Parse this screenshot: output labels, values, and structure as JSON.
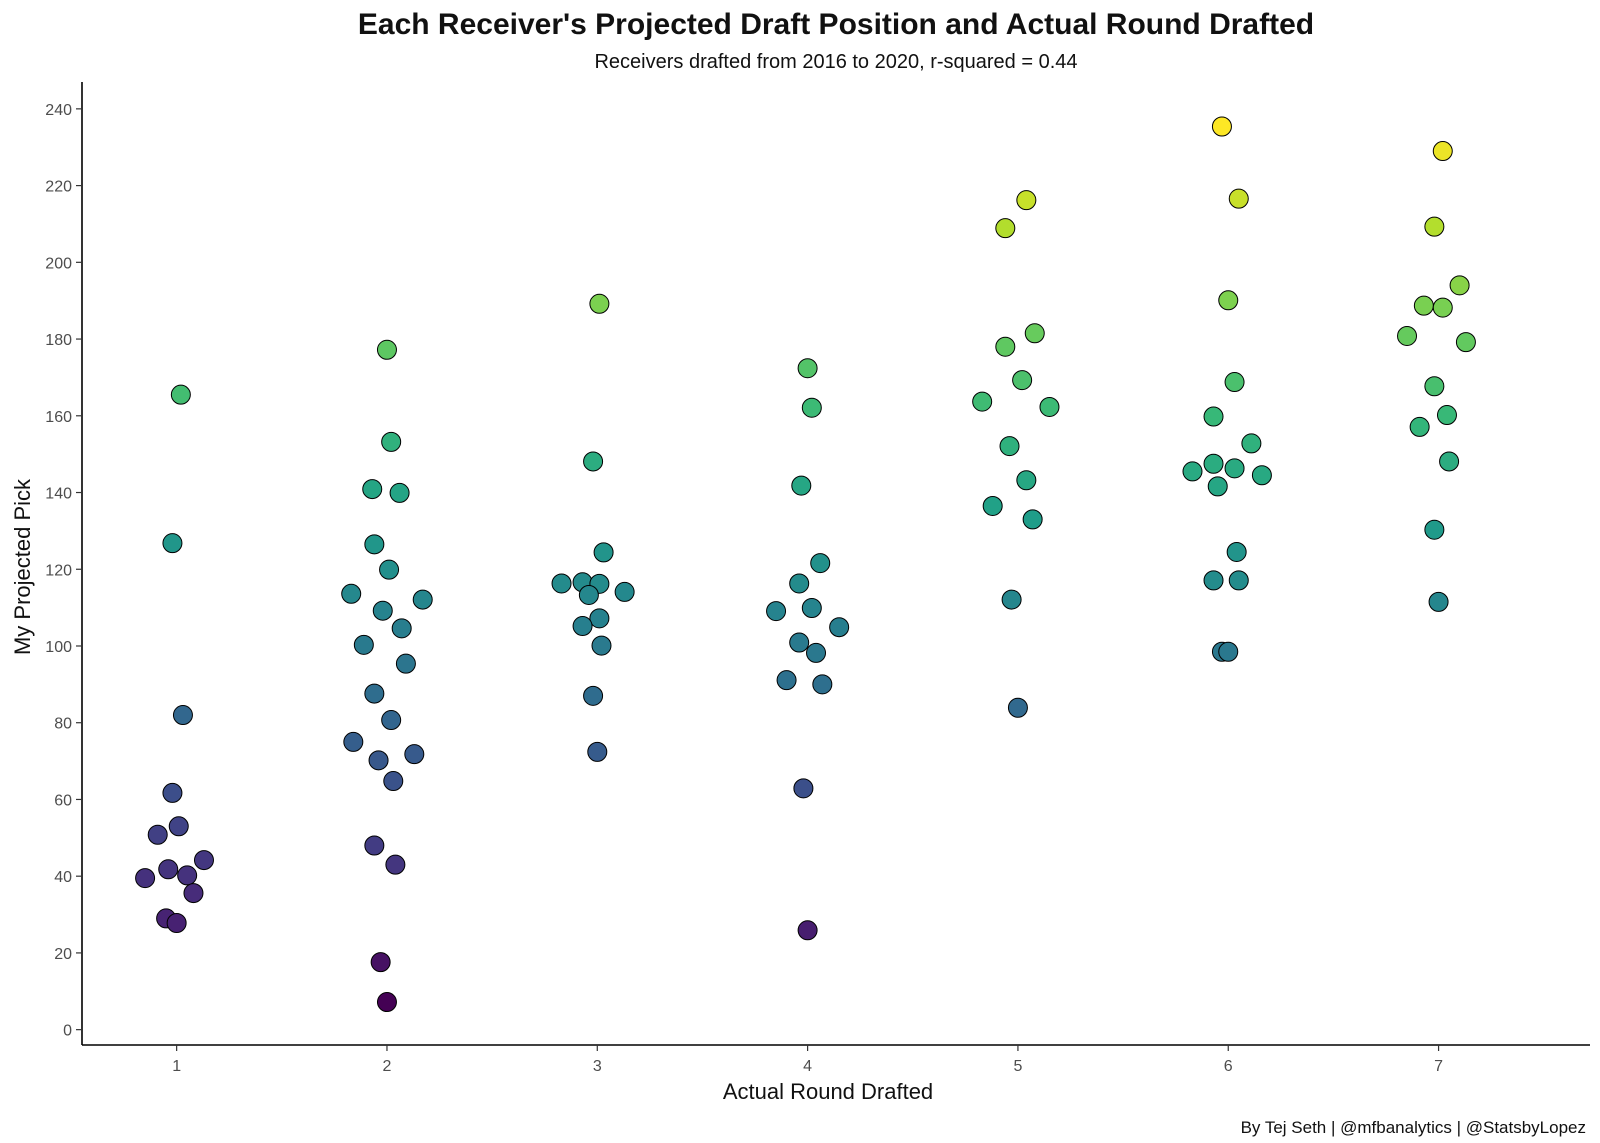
{
  "chart_data": {
    "type": "scatter",
    "title": "Each Receiver's Projected Draft Position and Actual Round Drafted",
    "subtitle": "Receivers drafted from 2016 to 2020, r-squared = 0.44",
    "xlabel": "Actual Round Drafted",
    "ylabel": "My Projected Pick",
    "caption": "By Tej Seth | @mfbanalytics | @StatsbyLopez",
    "xlim": [
      0.55,
      7.72
    ],
    "ylim": [
      -4,
      247
    ],
    "x_ticks": [
      1,
      2,
      3,
      4,
      5,
      6,
      7
    ],
    "y_ticks": [
      0,
      20,
      40,
      60,
      80,
      100,
      120,
      140,
      160,
      180,
      200,
      220,
      240
    ],
    "color_scale": {
      "name": "viridis",
      "domain": [
        7,
        235
      ],
      "stops": [
        "#440154",
        "#482878",
        "#3E4989",
        "#31688E",
        "#26828E",
        "#1F9E89",
        "#35B779",
        "#6DCD59",
        "#B4DE2C",
        "#FDE725"
      ]
    },
    "legend": "none",
    "grid": false,
    "series": [
      {
        "name": "Receivers",
        "points": [
          {
            "x": 1.02,
            "y": 165.5
          },
          {
            "x": 0.98,
            "y": 126.8
          },
          {
            "x": 1.03,
            "y": 82.0
          },
          {
            "x": 0.98,
            "y": 61.7
          },
          {
            "x": 1.01,
            "y": 53.0
          },
          {
            "x": 0.91,
            "y": 50.8
          },
          {
            "x": 1.13,
            "y": 44.2
          },
          {
            "x": 0.96,
            "y": 41.8
          },
          {
            "x": 1.05,
            "y": 40.2
          },
          {
            "x": 0.85,
            "y": 39.5
          },
          {
            "x": 1.08,
            "y": 35.6
          },
          {
            "x": 0.95,
            "y": 29.0
          },
          {
            "x": 1.0,
            "y": 27.8
          },
          {
            "x": 2.0,
            "y": 177.2
          },
          {
            "x": 2.02,
            "y": 153.2
          },
          {
            "x": 1.93,
            "y": 140.9
          },
          {
            "x": 2.06,
            "y": 139.9
          },
          {
            "x": 1.94,
            "y": 126.5
          },
          {
            "x": 2.01,
            "y": 119.9
          },
          {
            "x": 1.83,
            "y": 113.6
          },
          {
            "x": 2.17,
            "y": 112.1
          },
          {
            "x": 1.98,
            "y": 109.2
          },
          {
            "x": 2.07,
            "y": 104.6
          },
          {
            "x": 1.89,
            "y": 100.3
          },
          {
            "x": 2.09,
            "y": 95.4
          },
          {
            "x": 1.94,
            "y": 87.6
          },
          {
            "x": 2.02,
            "y": 80.7
          },
          {
            "x": 1.84,
            "y": 75.0
          },
          {
            "x": 2.13,
            "y": 71.8
          },
          {
            "x": 1.96,
            "y": 70.2
          },
          {
            "x": 2.03,
            "y": 64.8
          },
          {
            "x": 1.94,
            "y": 48.0
          },
          {
            "x": 2.04,
            "y": 43.0
          },
          {
            "x": 1.97,
            "y": 17.6
          },
          {
            "x": 2.0,
            "y": 7.2
          },
          {
            "x": 3.01,
            "y": 189.2
          },
          {
            "x": 2.98,
            "y": 148.1
          },
          {
            "x": 3.03,
            "y": 124.4
          },
          {
            "x": 2.83,
            "y": 116.3
          },
          {
            "x": 2.93,
            "y": 116.6
          },
          {
            "x": 3.01,
            "y": 116.2
          },
          {
            "x": 3.13,
            "y": 114.1
          },
          {
            "x": 2.96,
            "y": 113.3
          },
          {
            "x": 3.01,
            "y": 107.2
          },
          {
            "x": 2.93,
            "y": 105.2
          },
          {
            "x": 3.02,
            "y": 100.1
          },
          {
            "x": 2.98,
            "y": 87.0
          },
          {
            "x": 3.0,
            "y": 72.4
          },
          {
            "x": 4.0,
            "y": 172.4
          },
          {
            "x": 4.02,
            "y": 162.1
          },
          {
            "x": 3.97,
            "y": 141.8
          },
          {
            "x": 4.06,
            "y": 121.6
          },
          {
            "x": 3.96,
            "y": 116.3
          },
          {
            "x": 3.85,
            "y": 109.1
          },
          {
            "x": 4.02,
            "y": 109.9
          },
          {
            "x": 4.15,
            "y": 104.9
          },
          {
            "x": 3.96,
            "y": 100.9
          },
          {
            "x": 4.04,
            "y": 98.2
          },
          {
            "x": 3.9,
            "y": 91.1
          },
          {
            "x": 4.07,
            "y": 90.0
          },
          {
            "x": 3.98,
            "y": 62.9
          },
          {
            "x": 4.0,
            "y": 25.9
          },
          {
            "x": 5.04,
            "y": 216.2
          },
          {
            "x": 4.94,
            "y": 208.9
          },
          {
            "x": 5.08,
            "y": 181.5
          },
          {
            "x": 4.94,
            "y": 178.0
          },
          {
            "x": 5.02,
            "y": 169.3
          },
          {
            "x": 4.83,
            "y": 163.7
          },
          {
            "x": 5.15,
            "y": 162.3
          },
          {
            "x": 4.96,
            "y": 152.1
          },
          {
            "x": 5.04,
            "y": 143.2
          },
          {
            "x": 4.88,
            "y": 136.5
          },
          {
            "x": 5.07,
            "y": 133.0
          },
          {
            "x": 4.97,
            "y": 112.1
          },
          {
            "x": 5.0,
            "y": 83.9
          },
          {
            "x": 5.97,
            "y": 235.4
          },
          {
            "x": 6.05,
            "y": 216.6
          },
          {
            "x": 6.0,
            "y": 190.1
          },
          {
            "x": 6.03,
            "y": 168.8
          },
          {
            "x": 5.93,
            "y": 159.8
          },
          {
            "x": 6.11,
            "y": 152.8
          },
          {
            "x": 5.93,
            "y": 147.5
          },
          {
            "x": 6.03,
            "y": 146.3
          },
          {
            "x": 5.83,
            "y": 145.5
          },
          {
            "x": 6.16,
            "y": 144.5
          },
          {
            "x": 5.95,
            "y": 141.6
          },
          {
            "x": 6.04,
            "y": 124.5
          },
          {
            "x": 5.93,
            "y": 117.1
          },
          {
            "x": 6.05,
            "y": 117.1
          },
          {
            "x": 5.97,
            "y": 98.5
          },
          {
            "x": 6.0,
            "y": 98.5
          },
          {
            "x": 7.02,
            "y": 229.0
          },
          {
            "x": 6.98,
            "y": 209.3
          },
          {
            "x": 7.1,
            "y": 194.0
          },
          {
            "x": 6.93,
            "y": 188.7
          },
          {
            "x": 7.02,
            "y": 188.2
          },
          {
            "x": 6.85,
            "y": 180.8
          },
          {
            "x": 7.13,
            "y": 179.2
          },
          {
            "x": 6.98,
            "y": 167.7
          },
          {
            "x": 7.04,
            "y": 160.2
          },
          {
            "x": 6.91,
            "y": 157.1
          },
          {
            "x": 7.05,
            "y": 148.1
          },
          {
            "x": 6.98,
            "y": 130.3
          },
          {
            "x": 7.0,
            "y": 111.5
          }
        ]
      }
    ]
  }
}
